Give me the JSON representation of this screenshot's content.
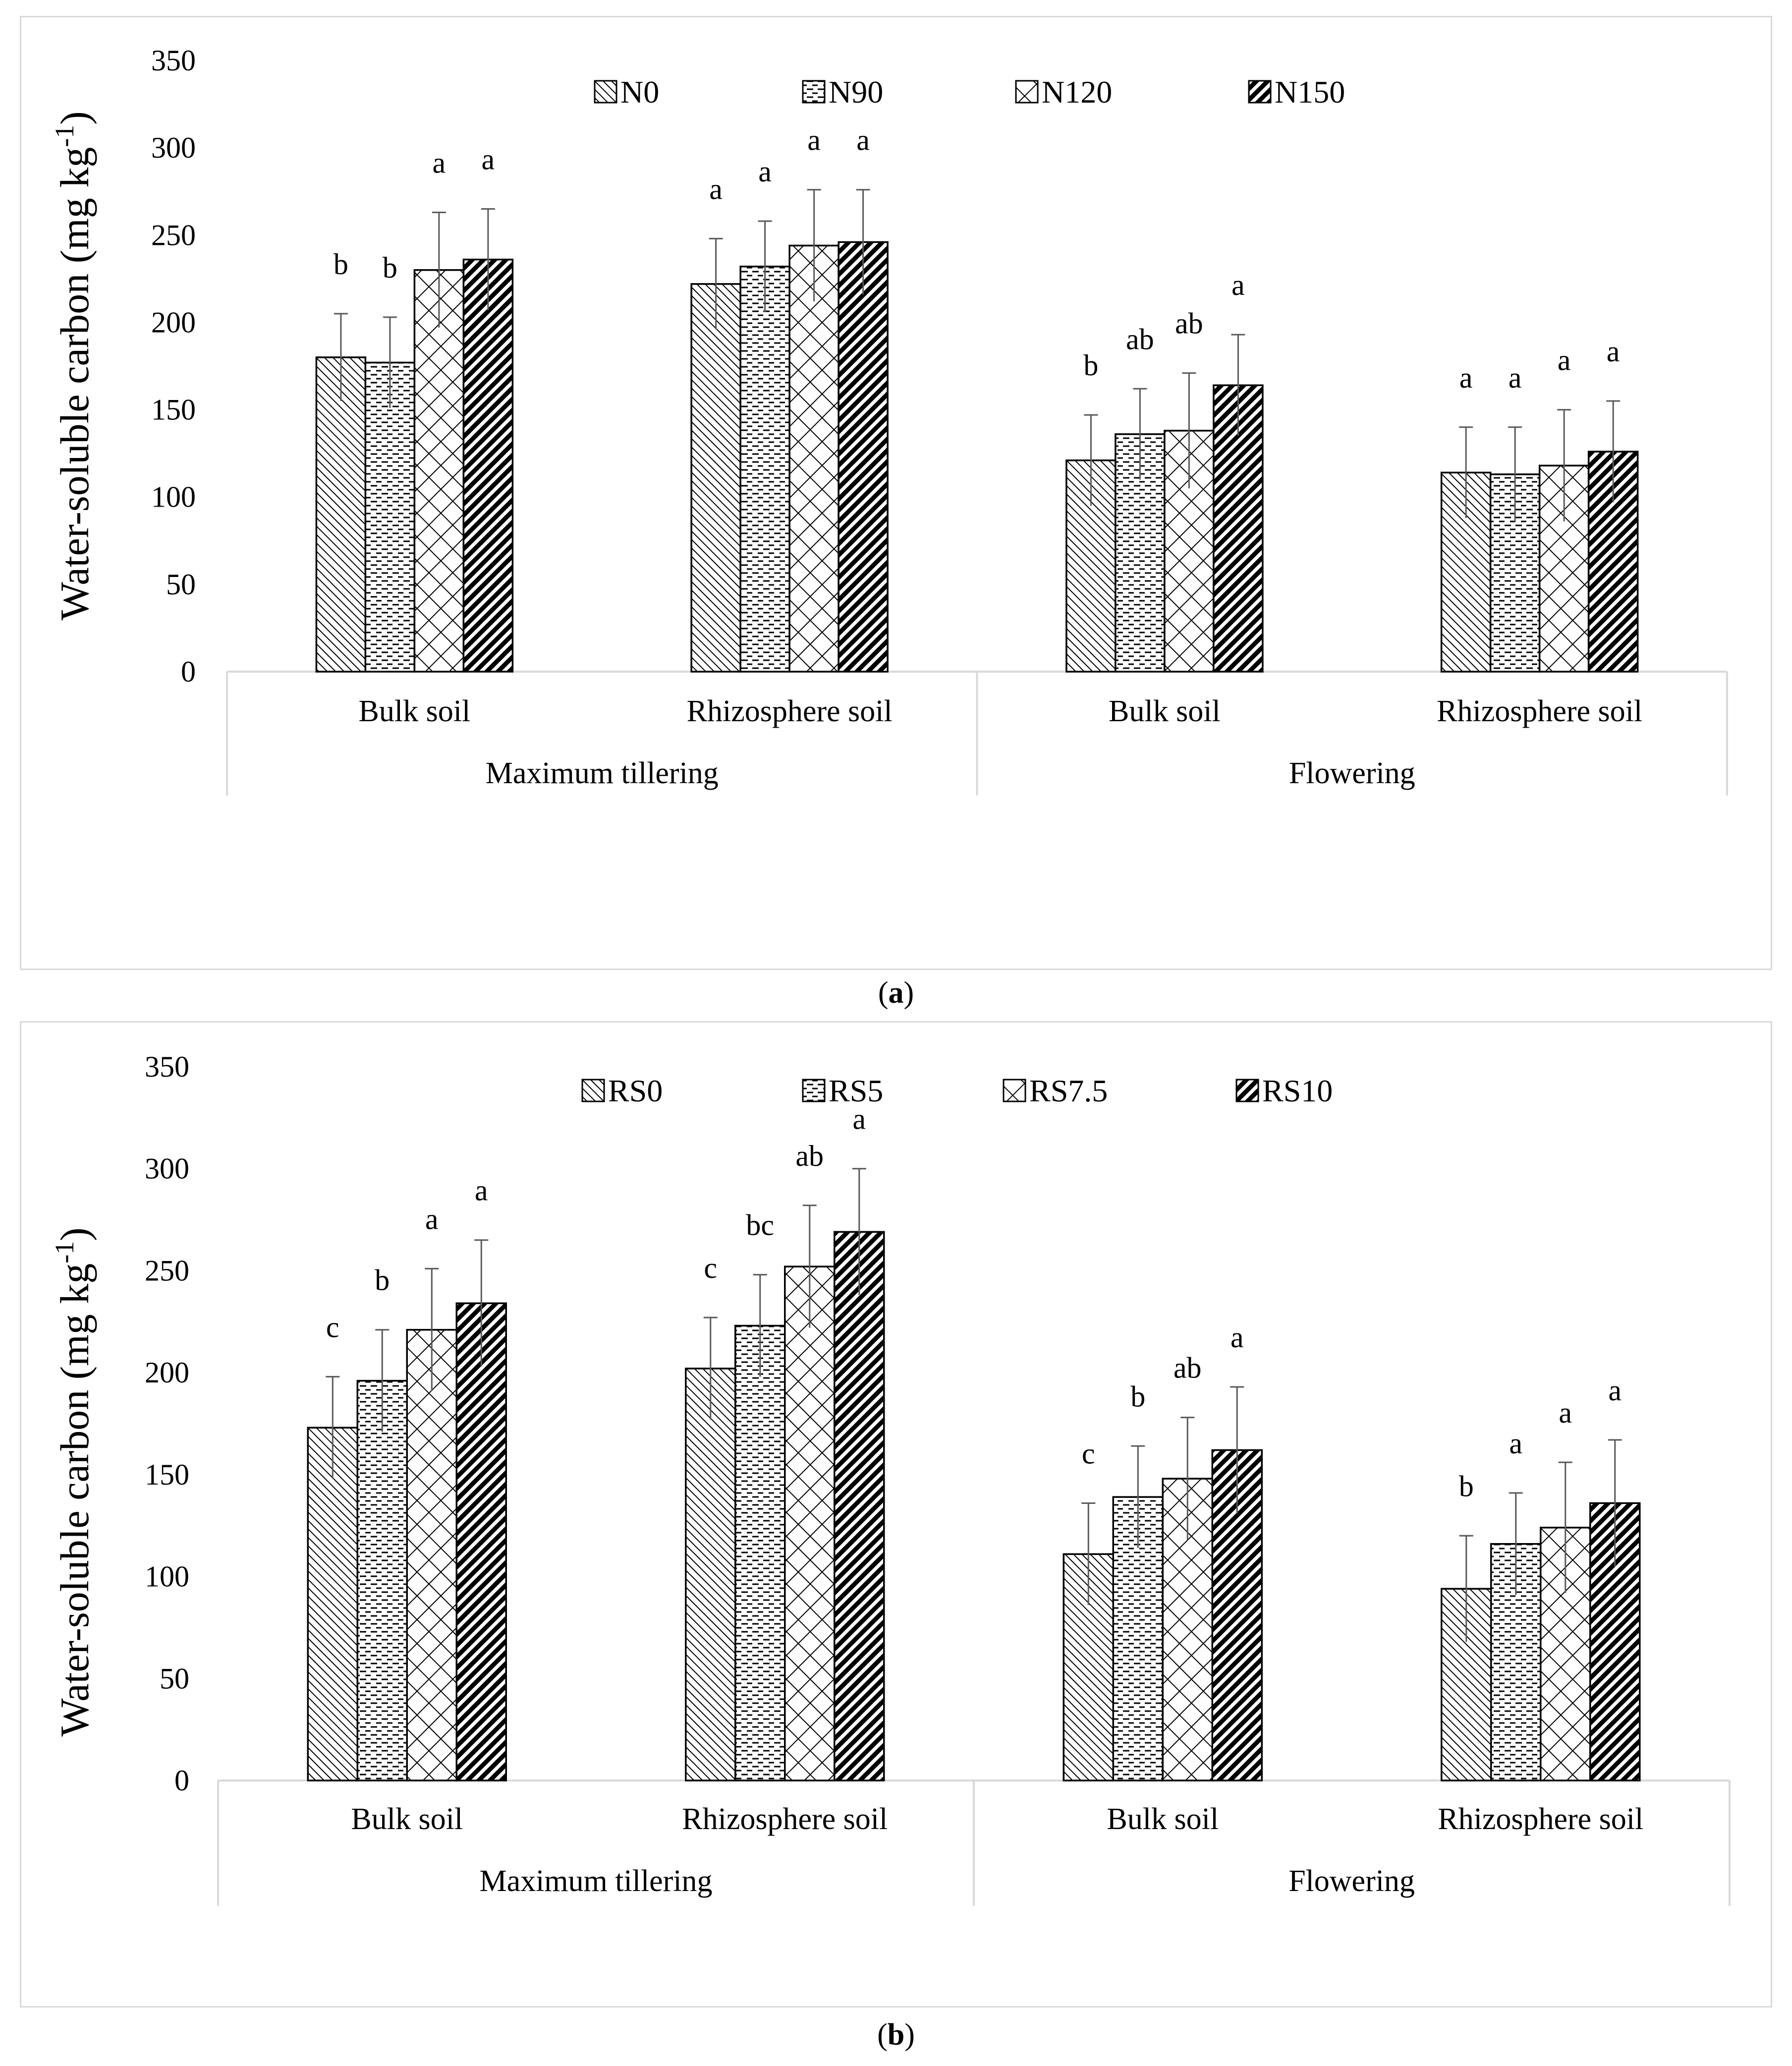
{
  "chart_data": [
    {
      "type": "bar",
      "panel_label": "a",
      "ylabel": "Water-soluble carbon (mg kg",
      "ylabel_sup": "-1",
      "ylabel_close": ")",
      "ylim": [
        0,
        350
      ],
      "yticks": [
        0,
        50,
        100,
        150,
        200,
        250,
        300,
        350
      ],
      "categories": [
        "Bulk soil",
        "Rhizosphere soil",
        "Bulk soil",
        "Rhizosphere soil"
      ],
      "groups": [
        {
          "label": "Maximum tillering",
          "span": [
            0,
            1
          ]
        },
        {
          "label": "Flowering",
          "span": [
            2,
            3
          ]
        }
      ],
      "series": [
        {
          "name": "N0",
          "values": [
            180,
            222,
            121,
            114
          ],
          "errors": [
            25,
            26,
            26,
            26
          ],
          "letters": [
            "b",
            "a",
            "b",
            "a"
          ]
        },
        {
          "name": "N90",
          "values": [
            177,
            232,
            136,
            113
          ],
          "errors": [
            26,
            26,
            26,
            27
          ],
          "letters": [
            "b",
            "a",
            "ab",
            "a"
          ]
        },
        {
          "name": "N120",
          "values": [
            230,
            244,
            138,
            118
          ],
          "errors": [
            33,
            32,
            33,
            32
          ],
          "letters": [
            "a",
            "a",
            "ab",
            "a"
          ]
        },
        {
          "name": "N150",
          "values": [
            236,
            246,
            164,
            126
          ],
          "errors": [
            29,
            30,
            29,
            29
          ],
          "letters": [
            "a",
            "a",
            "a",
            "a"
          ]
        }
      ]
    },
    {
      "type": "bar",
      "panel_label": "b",
      "ylabel": "Water-soluble carbon (mg kg",
      "ylabel_sup": "-1",
      "ylabel_close": ")",
      "ylim": [
        0,
        350
      ],
      "yticks": [
        0,
        50,
        100,
        150,
        200,
        250,
        300,
        350
      ],
      "categories": [
        "Bulk soil",
        "Rhizosphere soil",
        "Bulk soil",
        "Rhizosphere soil"
      ],
      "groups": [
        {
          "label": "Maximum tillering",
          "span": [
            0,
            1
          ]
        },
        {
          "label": "Flowering",
          "span": [
            2,
            3
          ]
        }
      ],
      "series": [
        {
          "name": "RS0",
          "values": [
            173,
            202,
            111,
            94
          ],
          "errors": [
            25,
            25,
            25,
            26
          ],
          "letters": [
            "c",
            "c",
            "c",
            "b"
          ]
        },
        {
          "name": "RS5",
          "values": [
            196,
            223,
            139,
            116
          ],
          "errors": [
            25,
            25,
            25,
            25
          ],
          "letters": [
            "b",
            "bc",
            "b",
            "a"
          ]
        },
        {
          "name": "RS7.5",
          "values": [
            221,
            252,
            148,
            124
          ],
          "errors": [
            30,
            30,
            30,
            32
          ],
          "letters": [
            "a",
            "ab",
            "ab",
            "a"
          ]
        },
        {
          "name": "RS10",
          "values": [
            234,
            269,
            162,
            136
          ],
          "errors": [
            31,
            31,
            31,
            31
          ],
          "letters": [
            "a",
            "a",
            "a",
            "a"
          ]
        }
      ]
    }
  ]
}
